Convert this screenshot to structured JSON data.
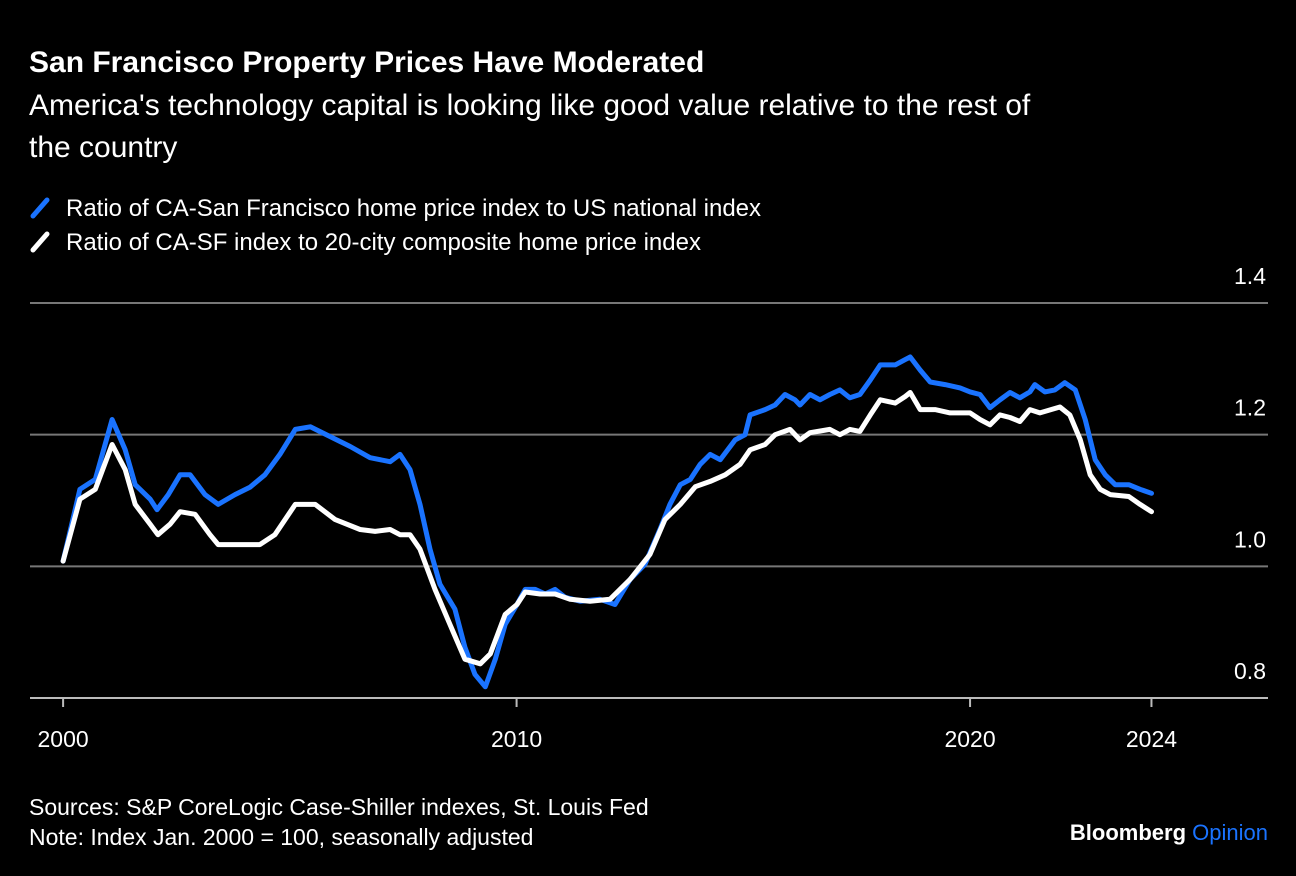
{
  "chart_data": {
    "type": "line",
    "title": "San Francisco Property Prices Have Moderated",
    "subtitle": [
      "America's technology capital is looking like good value relative to the rest of",
      "the country"
    ],
    "series": [
      {
        "name": "Ratio of CA-San Francisco home price index to US national index",
        "color": "#1a73ff",
        "x": [
          2000.0,
          2000.37,
          2000.71,
          2001.08,
          2001.37,
          2001.59,
          2001.92,
          2002.07,
          2002.32,
          2002.58,
          2002.8,
          2003.13,
          2003.42,
          2003.79,
          2004.12,
          2004.45,
          2004.78,
          2005.12,
          2005.45,
          2005.89,
          2006.33,
          2006.77,
          2007.21,
          2007.43,
          2007.65,
          2007.87,
          2008.09,
          2008.31,
          2008.64,
          2008.86,
          2009.08,
          2009.31,
          2009.53,
          2009.75,
          2010.01,
          2010.19,
          2010.41,
          2010.63,
          2010.85,
          2011.07,
          2011.4,
          2011.84,
          2012.17,
          2012.5,
          2012.83,
          2013.16,
          2013.38,
          2013.61,
          2013.83,
          2014.05,
          2014.27,
          2014.49,
          2014.82,
          2015.04,
          2015.15,
          2015.48,
          2015.7,
          2015.92,
          2016.14,
          2016.25,
          2016.47,
          2016.69,
          2016.91,
          2017.13,
          2017.35,
          2017.57,
          2017.8,
          2018.02,
          2018.35,
          2018.57,
          2018.68,
          2018.9,
          2019.12,
          2019.45,
          2019.78,
          2020.0,
          2020.22,
          2020.44,
          2020.66,
          2020.88,
          2021.1,
          2021.32,
          2021.43,
          2021.65,
          2021.87,
          2022.09,
          2022.32,
          2022.54,
          2022.76,
          2022.98,
          2023.2,
          2023.5,
          2023.75,
          2024.0
        ],
        "values": [
          1.008,
          1.117,
          1.132,
          1.223,
          1.177,
          1.124,
          1.102,
          1.086,
          1.109,
          1.139,
          1.139,
          1.109,
          1.094,
          1.109,
          1.12,
          1.139,
          1.17,
          1.208,
          1.212,
          1.197,
          1.182,
          1.165,
          1.159,
          1.17,
          1.147,
          1.094,
          1.026,
          0.973,
          0.935,
          0.877,
          0.836,
          0.817,
          0.859,
          0.912,
          0.942,
          0.965,
          0.965,
          0.958,
          0.965,
          0.953,
          0.947,
          0.95,
          0.942,
          0.98,
          1.003,
          1.056,
          1.094,
          1.124,
          1.132,
          1.155,
          1.17,
          1.162,
          1.192,
          1.2,
          1.23,
          1.238,
          1.245,
          1.261,
          1.253,
          1.245,
          1.261,
          1.253,
          1.261,
          1.268,
          1.256,
          1.261,
          1.283,
          1.306,
          1.306,
          1.314,
          1.318,
          1.298,
          1.28,
          1.276,
          1.271,
          1.265,
          1.261,
          1.241,
          1.253,
          1.264,
          1.256,
          1.265,
          1.276,
          1.265,
          1.268,
          1.279,
          1.268,
          1.223,
          1.162,
          1.139,
          1.124,
          1.124,
          1.117,
          1.111
        ]
      },
      {
        "name": "Ratio of CA-SF index to 20-city composite home price index",
        "color": "#ffffff",
        "x": [
          2000.0,
          2000.37,
          2000.71,
          2001.08,
          2001.37,
          2001.59,
          2001.92,
          2002.09,
          2002.36,
          2002.58,
          2002.91,
          2003.24,
          2003.42,
          2003.79,
          2004.34,
          2004.67,
          2005.12,
          2005.56,
          2006.0,
          2006.55,
          2006.88,
          2007.21,
          2007.43,
          2007.65,
          2007.87,
          2008.2,
          2008.53,
          2008.86,
          2009.2,
          2009.42,
          2009.75,
          2010.01,
          2010.19,
          2010.52,
          2010.85,
          2011.18,
          2011.62,
          2012.06,
          2012.5,
          2012.94,
          2013.27,
          2013.61,
          2013.94,
          2014.27,
          2014.6,
          2014.93,
          2015.15,
          2015.48,
          2015.7,
          2016.03,
          2016.25,
          2016.47,
          2016.91,
          2017.13,
          2017.35,
          2017.57,
          2017.8,
          2018.02,
          2018.35,
          2018.57,
          2018.68,
          2018.9,
          2019.23,
          2019.56,
          2020.0,
          2020.22,
          2020.44,
          2020.66,
          2020.88,
          2021.1,
          2021.32,
          2021.54,
          2021.98,
          2022.2,
          2022.43,
          2022.65,
          2022.87,
          2023.09,
          2023.5,
          2023.75,
          2024.0
        ],
        "values": [
          1.008,
          1.102,
          1.117,
          1.185,
          1.147,
          1.094,
          1.064,
          1.048,
          1.064,
          1.083,
          1.079,
          1.048,
          1.033,
          1.033,
          1.033,
          1.048,
          1.094,
          1.094,
          1.071,
          1.056,
          1.053,
          1.056,
          1.048,
          1.048,
          1.026,
          0.965,
          0.912,
          0.859,
          0.852,
          0.867,
          0.927,
          0.942,
          0.961,
          0.958,
          0.958,
          0.95,
          0.947,
          0.95,
          0.98,
          1.018,
          1.071,
          1.094,
          1.121,
          1.129,
          1.139,
          1.155,
          1.177,
          1.185,
          1.2,
          1.208,
          1.192,
          1.203,
          1.208,
          1.2,
          1.208,
          1.205,
          1.23,
          1.253,
          1.248,
          1.258,
          1.264,
          1.238,
          1.238,
          1.233,
          1.233,
          1.223,
          1.215,
          1.23,
          1.226,
          1.22,
          1.238,
          1.233,
          1.242,
          1.23,
          1.192,
          1.139,
          1.117,
          1.109,
          1.106,
          1.094,
          1.083
        ]
      }
    ],
    "xlim": [
      1999.27,
      2026.57
    ],
    "xticks": [
      2000,
      2010,
      2020,
      2024
    ],
    "ylim": [
      0.8,
      1.4
    ],
    "yticks": [
      0.8,
      {
        "value": 1,
        "label": "1.0"
      },
      1.2,
      1.4
    ],
    "grid": true,
    "sources": "Sources: S&P CoreLogic Case-Shiller indexes, St. Louis Fed",
    "note": "Note: Index Jan. 2000 = 100, seasonally adjusted",
    "brand": "Bloomberg",
    "brand_section": "Opinion"
  }
}
